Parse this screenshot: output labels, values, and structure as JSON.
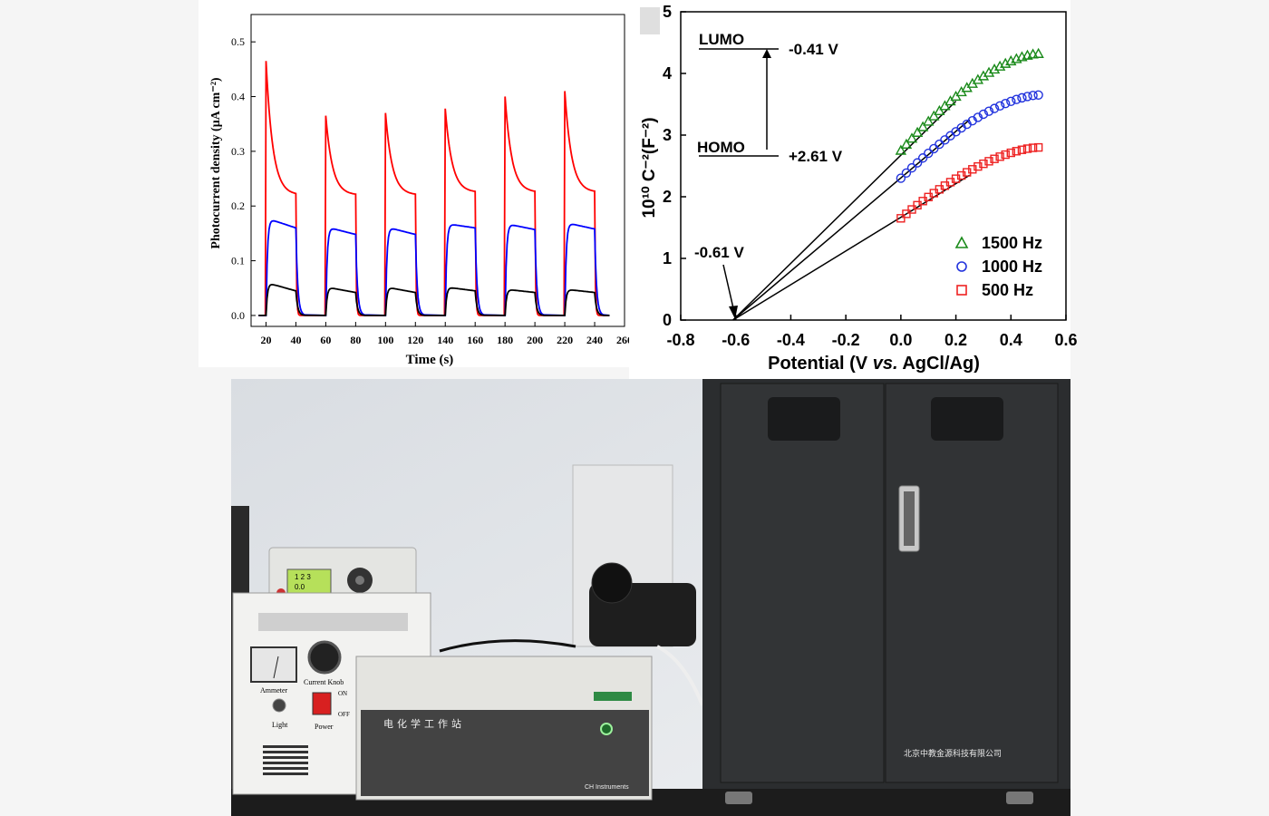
{
  "chart_data": [
    {
      "type": "line",
      "title": "",
      "xlabel": "Time (s)",
      "ylabel": "Photocurrent density (μA cm⁻²)",
      "xlim": [
        10,
        260
      ],
      "ylim": [
        -0.02,
        0.55
      ],
      "x_ticks": [
        "20",
        "40",
        "60",
        "80",
        "100",
        "120",
        "140",
        "160",
        "180",
        "200",
        "220",
        "240",
        "260"
      ],
      "y_ticks": [
        "0.0",
        "0.1",
        "0.2",
        "0.3",
        "0.4",
        "0.5"
      ],
      "on_intervals": [
        [
          20,
          40
        ],
        [
          60,
          80
        ],
        [
          100,
          120
        ],
        [
          140,
          160
        ],
        [
          180,
          200
        ],
        [
          220,
          240
        ]
      ],
      "series": [
        {
          "color": "#ff0000",
          "baseline": 0.0,
          "peaks": [
            0.465,
            0.365,
            0.37,
            0.378,
            0.4,
            0.41
          ],
          "end_values": [
            0.22,
            0.22,
            0.22,
            0.225,
            0.225,
            0.225
          ]
        },
        {
          "color": "#0000ff",
          "baseline": 0.0,
          "peaks": [
            0.178,
            0.162,
            0.162,
            0.168,
            0.168,
            0.17
          ],
          "end_values": [
            0.16,
            0.148,
            0.148,
            0.16,
            0.157,
            0.158
          ]
        },
        {
          "color": "#000000",
          "baseline": 0.0,
          "peaks": [
            0.06,
            0.052,
            0.052,
            0.052,
            0.048,
            0.048
          ],
          "end_values": [
            0.045,
            0.042,
            0.042,
            0.045,
            0.042,
            0.042
          ]
        }
      ]
    },
    {
      "type": "scatter",
      "title": "",
      "xlabel_parts": [
        "Potential (V ",
        "vs.",
        " AgCl/Ag)"
      ],
      "ylabel": "10¹⁰ C⁻²(F⁻²)",
      "xlim": [
        -0.8,
        0.6
      ],
      "ylim": [
        0,
        5
      ],
      "x_ticks": [
        "-0.8",
        "-0.6",
        "-0.4",
        "-0.2",
        "0.0",
        "0.2",
        "0.4",
        "0.6"
      ],
      "y_ticks": [
        "0",
        "1",
        "2",
        "3",
        "4",
        "5"
      ],
      "annotations": {
        "lumo_label": "LUMO",
        "lumo_value": "-0.41 V",
        "homo_label": "HOMO",
        "homo_value": "+2.61 V",
        "intercept_label": "-0.61 V"
      },
      "series": [
        {
          "name": "1500 Hz",
          "marker": "triangle",
          "color": "#1a8a1a",
          "x_range": [
            0.0,
            0.5
          ],
          "y_start": 2.75,
          "y_end": 4.32
        },
        {
          "name": "1000 Hz",
          "marker": "circle",
          "color": "#2233dd",
          "x_range": [
            0.0,
            0.5
          ],
          "y_start": 2.3,
          "y_end": 3.65
        },
        {
          "name": "500 Hz",
          "marker": "square",
          "color": "#ee2222",
          "x_range": [
            0.0,
            0.5
          ],
          "y_start": 1.65,
          "y_end": 2.8
        }
      ],
      "fit_lines": [
        {
          "x0": -0.61,
          "y0": 0,
          "x1": 0.2,
          "y1": 3.55
        },
        {
          "x0": -0.61,
          "y0": 0,
          "x1": 0.25,
          "y1": 3.25
        },
        {
          "x0": -0.61,
          "y0": 0,
          "x1": 0.25,
          "y1": 2.35
        }
      ]
    }
  ],
  "photo": {
    "station_label": "电化学工作站",
    "brand_label": "CH Instruments",
    "ammeter_label": "Ammeter",
    "light_label": "Light",
    "current_knob_label": "Current  Knob",
    "power_label": "Power",
    "on_label": "ON",
    "off_label": "OFF",
    "cabinet_label": "北京中教金源科技有限公司",
    "display_line1": "1 2 3",
    "display_line2": "0.0"
  }
}
